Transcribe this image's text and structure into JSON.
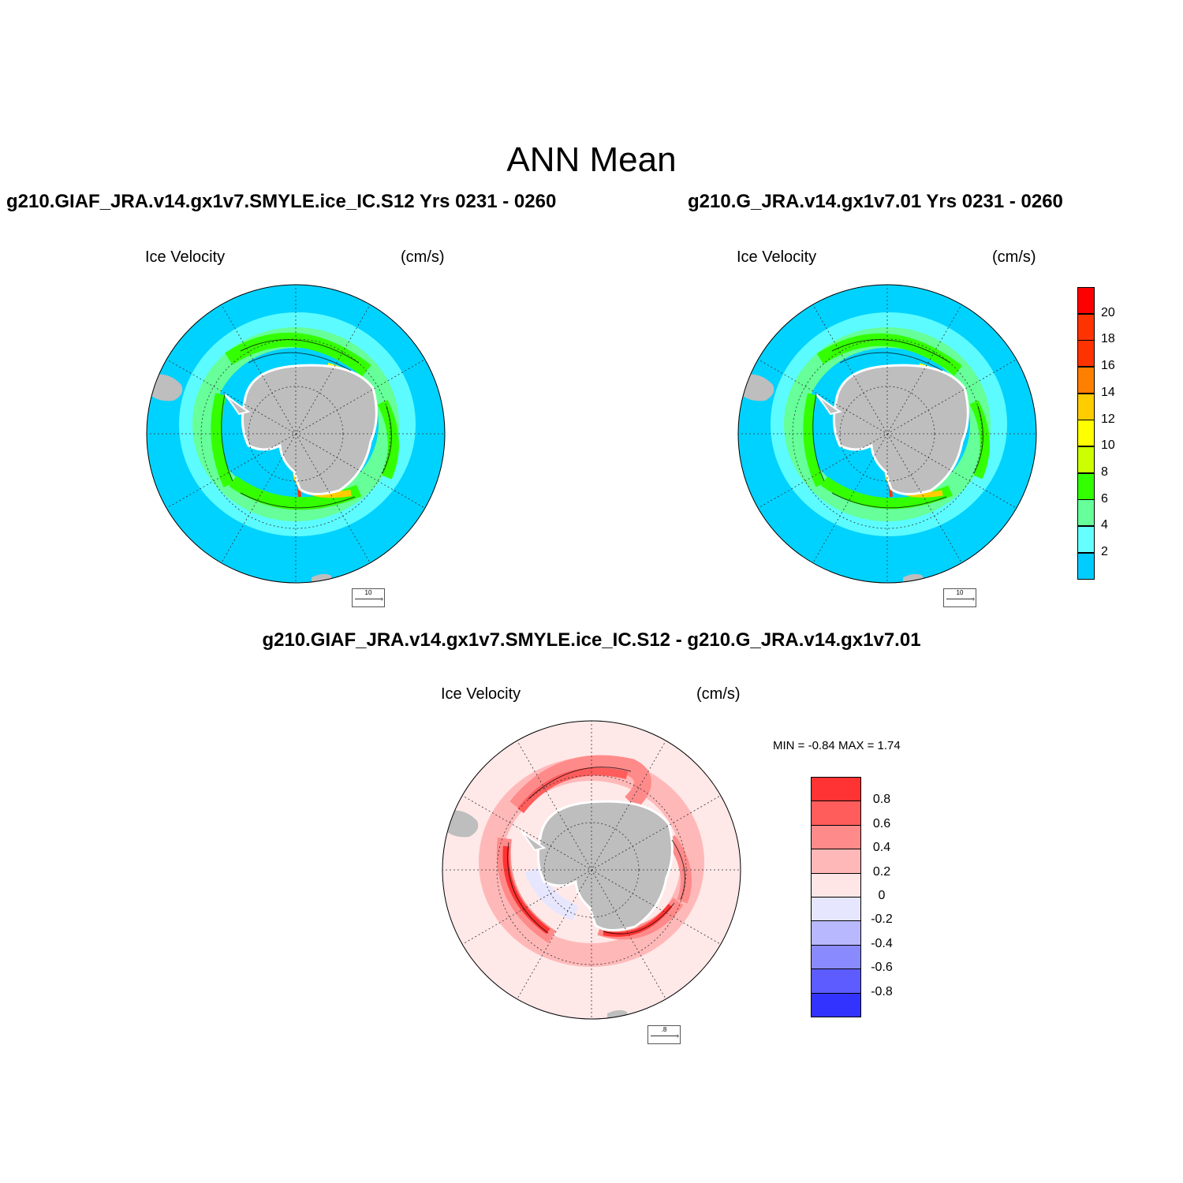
{
  "title": "ANN Mean",
  "panels": {
    "left": {
      "case": "g210.GIAF_JRA.v14.gx1v7.SMYLE.ice_IC.S12  Yrs 0231 - 0260",
      "variable": "Ice Velocity",
      "units": "(cm/s)",
      "ref_vector": "10"
    },
    "right": {
      "case": "g210.G_JRA.v14.gx1v7.01  Yrs 0231 - 0260",
      "variable": "Ice Velocity",
      "units": "(cm/s)",
      "ref_vector": "10"
    },
    "diff": {
      "case": "g210.GIAF_JRA.v14.gx1v7.SMYLE.ice_IC.S12 - g210.G_JRA.v14.gx1v7.01",
      "variable": "Ice Velocity",
      "units": "(cm/s)",
      "ref_vector": ".8",
      "minmax": "MIN =  -0.84 MAX =   1.74"
    }
  },
  "colorbars": {
    "speed": {
      "labels": [
        "20",
        "18",
        "16",
        "14",
        "12",
        "10",
        "8",
        "6",
        "4",
        "2"
      ],
      "colors": [
        "#ff0000",
        "#ff3300",
        "#ff7f00",
        "#ffcc00",
        "#ffff00",
        "#ccff00",
        "#33ff00",
        "#66ff99",
        "#66ffff",
        "#00ccff"
      ]
    },
    "diff": {
      "labels": [
        "0.8",
        "0.6",
        "0.4",
        "0.2",
        "0",
        "-0.2",
        "-0.4",
        "-0.6",
        "-0.8"
      ],
      "colors": [
        "#ff3333",
        "#ff5c5c",
        "#ff8a8a",
        "#ffb8b8",
        "#ffe6e6",
        "#e6e6ff",
        "#b8b8ff",
        "#8a8aff",
        "#5c5cff",
        "#3333ff"
      ]
    }
  },
  "colors": {
    "ocean_speed": "#00d2ff",
    "ocean_diff": "#ffe8e8",
    "land": "#bebebe",
    "coast_shelf": "#ffffff"
  }
}
